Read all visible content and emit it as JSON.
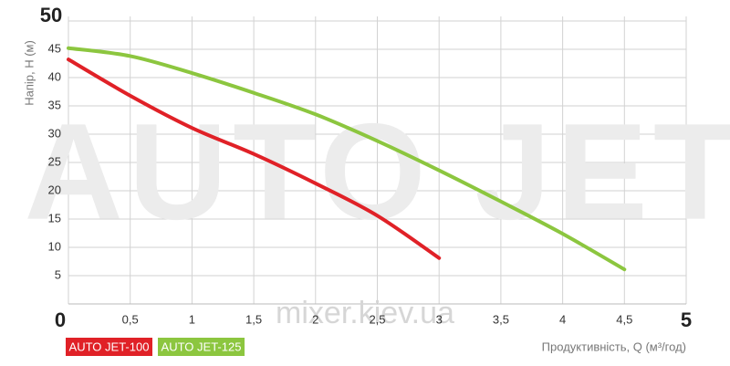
{
  "chart_data": {
    "type": "line",
    "watermark": "AUTO JET",
    "watermark_site": "mixer.kiev.ua",
    "y_label": "Напір, Н (м)",
    "x_label": "Продуктивність, Q (м³/год)",
    "xlim": [
      0,
      5
    ],
    "ylim": [
      0,
      50
    ],
    "xticks": [
      0,
      {
        "value": 0.5,
        "label": "0,5"
      },
      1,
      {
        "value": 1.5,
        "label": "1,5"
      },
      2,
      {
        "value": 2.5,
        "label": "2,5"
      },
      3,
      {
        "value": 3.5,
        "label": "3,5"
      },
      4,
      {
        "value": 4.5,
        "label": "4,5"
      },
      5
    ],
    "yticks": [
      0,
      5,
      10,
      15,
      20,
      25,
      30,
      35,
      40,
      45,
      50
    ],
    "grid": true,
    "series": [
      {
        "name": "AUTO JET-100",
        "color": "#e02127",
        "x": [
          0,
          0.5,
          1,
          1.5,
          2,
          2.5,
          3
        ],
        "values": [
          43.2,
          36.8,
          31.1,
          26.5,
          21.3,
          15.6,
          8.1
        ]
      },
      {
        "name": "AUTO JET-125",
        "color": "#8cc63f",
        "x": [
          0,
          0.5,
          1,
          1.5,
          2,
          2.5,
          3,
          3.5,
          4,
          4.5
        ],
        "values": [
          45.2,
          43.8,
          40.8,
          37.3,
          33.5,
          28.8,
          23.6,
          18.1,
          12.4,
          6.1
        ]
      }
    ]
  }
}
